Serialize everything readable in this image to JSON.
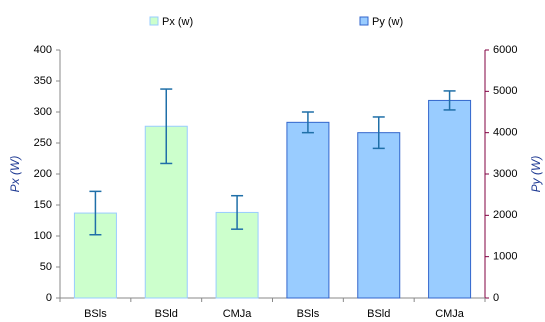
{
  "chart_data": {
    "type": "bar",
    "categories": [
      "BSls",
      "BSld",
      "CMJa",
      "BSls",
      "BSld",
      "CMJa"
    ],
    "series": [
      {
        "name": "Px (w)",
        "color": "#ccffcc",
        "edge": "#99ccff",
        "values": [
          137,
          277,
          138,
          null,
          null,
          null
        ],
        "errors": [
          35,
          60,
          27,
          null,
          null,
          null
        ],
        "axis": "y"
      },
      {
        "name": "Py (w)",
        "color": "#99ccff",
        "edge": "#3366cc",
        "values": [
          null,
          null,
          null,
          4250,
          4000,
          4780
        ],
        "errors": [
          null,
          null,
          null,
          250,
          380,
          230
        ],
        "axis": "y2"
      }
    ],
    "error_color": "#1f6fa8",
    "ylabel": "Px (W)",
    "y2label": "Py (W)",
    "ylim": [
      0,
      400
    ],
    "yticks": [
      0,
      50,
      100,
      150,
      200,
      250,
      300,
      350,
      400
    ],
    "y2lim": [
      0,
      6000
    ],
    "y2ticks": [
      0,
      1000,
      2000,
      3000,
      4000,
      5000,
      6000
    ],
    "grid": false,
    "legend": "top"
  }
}
